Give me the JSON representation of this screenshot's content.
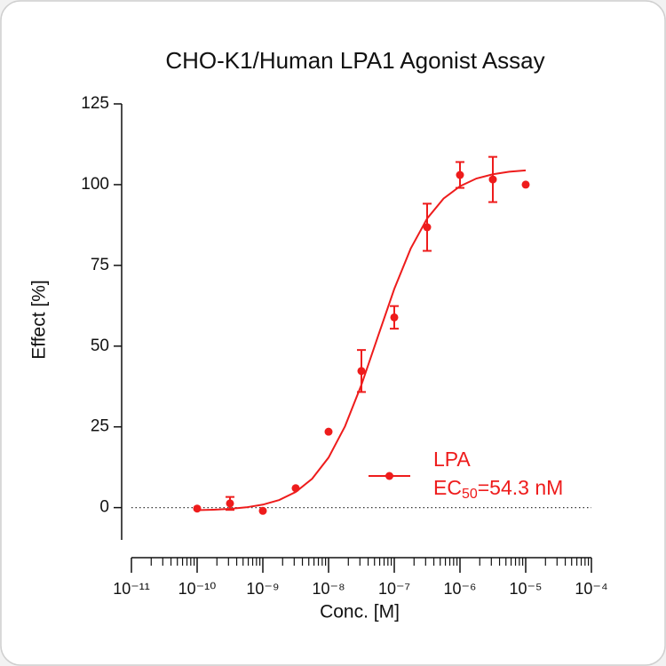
{
  "chart_data": {
    "type": "dose_response",
    "title": "CHO-K1/Human LPA1 Agonist Assay",
    "x_label": "Conc. [M]",
    "y_label": "Effect  [%]",
    "log_x": true,
    "xlim": [
      1e-11,
      0.0001
    ],
    "xticks": [
      {
        "value": 1e-11,
        "label": "10⁻¹¹"
      },
      {
        "value": 1e-10,
        "label": "10⁻¹⁰"
      },
      {
        "value": 1e-09,
        "label": "10⁻⁹"
      },
      {
        "value": 1e-08,
        "label": "10⁻⁸"
      },
      {
        "value": 1e-07,
        "label": "10⁻⁷"
      },
      {
        "value": 1e-06,
        "label": "10⁻⁶"
      },
      {
        "value": 1e-05,
        "label": "10⁻⁵"
      },
      {
        "value": 0.0001,
        "label": "10⁻⁴"
      }
    ],
    "minor_ticks": true,
    "ylim": [
      -10,
      125
    ],
    "yticks": [
      0,
      25,
      50,
      75,
      100,
      125
    ],
    "zero_line": true,
    "series": [
      {
        "name": "LPA",
        "color": "#ee1c1c",
        "x": [
          1e-10,
          3.162e-10,
          1e-09,
          3.162e-09,
          1e-08,
          3.162e-08,
          1e-07,
          3.162e-07,
          1e-06,
          3.162e-06,
          1e-05
        ],
        "values": [
          -0.3,
          1.3,
          -1,
          6,
          23.5,
          42.3,
          58.9,
          86.8,
          103,
          101.6,
          100
        ],
        "errors": [
          0,
          2,
          0,
          0,
          0,
          6.5,
          3.5,
          7.3,
          4,
          7,
          0
        ]
      }
    ],
    "fit": {
      "color": "#ee1c1c",
      "x": [
        1e-10,
        1.778e-10,
        3.162e-10,
        5.623e-10,
        1e-09,
        1.778e-09,
        3.162e-09,
        5.623e-09,
        1e-08,
        1.778e-08,
        3.162e-08,
        5.623e-08,
        1e-07,
        1.778e-07,
        3.162e-07,
        5.623e-07,
        1e-06,
        1.778e-06,
        3.162e-06,
        5.623e-06,
        1e-05
      ],
      "values": [
        -0.8,
        -0.65,
        -0.39,
        0.09,
        0.92,
        2.36,
        4.83,
        8.94,
        15.49,
        25.15,
        38.0,
        52.9,
        67.7,
        80.2,
        89.5,
        95.7,
        99.5,
        101.9,
        103.2,
        104.0,
        104.4
      ]
    },
    "annotation": [
      "EC",
      "50",
      "=54.3 nM"
    ]
  }
}
